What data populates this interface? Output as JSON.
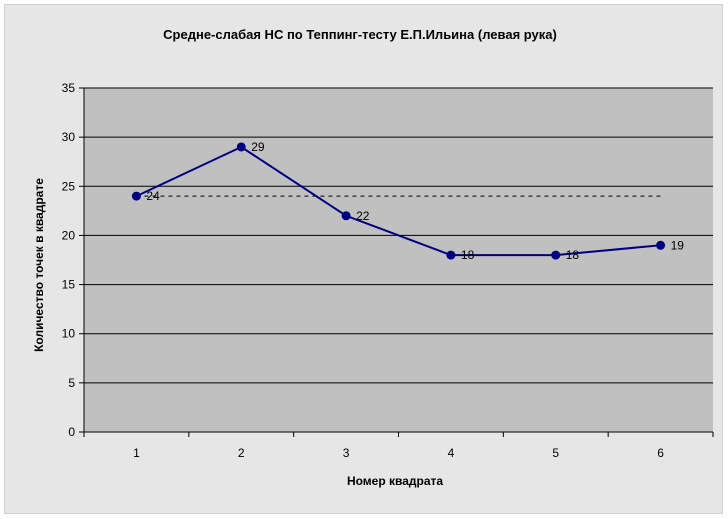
{
  "chart_data": {
    "type": "line",
    "title": "Средне-слабая НС по Теппинг-тесту Е.П.Ильина (левая рука)",
    "xlabel": "Номер квадрата",
    "ylabel": "Количество точек в квадрате",
    "categories": [
      "1",
      "2",
      "3",
      "4",
      "5",
      "6"
    ],
    "ylim": [
      0,
      35
    ],
    "yticks": [
      0,
      5,
      10,
      15,
      20,
      25,
      30,
      35
    ],
    "grid": true,
    "series": [
      {
        "values": [
          24,
          29,
          22,
          18,
          18,
          19
        ],
        "color": "#000080"
      },
      {
        "values": [
          24,
          24,
          24,
          24,
          24,
          24
        ],
        "color": "#000000",
        "style": "dashed-reference"
      }
    ],
    "data_labels": [
      "24",
      "29",
      "22",
      "18",
      "18",
      "19"
    ],
    "plot_background": "#c0c0c0",
    "chart_background": "#e6e6e6"
  }
}
